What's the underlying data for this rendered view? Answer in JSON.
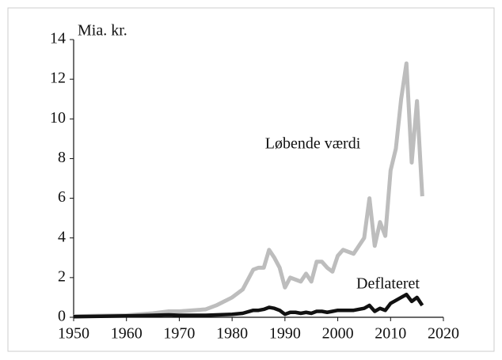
{
  "chart_data": {
    "type": "line",
    "ylabel": "Mia. kr.",
    "x": [
      1950,
      1955,
      1960,
      1965,
      1968,
      1970,
      1975,
      1977,
      1980,
      1982,
      1984,
      1985,
      1986,
      1987,
      1988,
      1989,
      1990,
      1991,
      1992,
      1993,
      1994,
      1995,
      1996,
      1997,
      1998,
      1999,
      2000,
      2001,
      2002,
      2003,
      2004,
      2005,
      2006,
      2007,
      2008,
      2009,
      2010,
      2011,
      2012,
      2013,
      2014,
      2015,
      2016
    ],
    "series": [
      {
        "name": "Løbende værdi",
        "color": "#bdbdbd",
        "values": [
          0.05,
          0.08,
          0.1,
          0.2,
          0.3,
          0.3,
          0.4,
          0.6,
          1.0,
          1.4,
          2.4,
          2.5,
          2.5,
          3.4,
          3.0,
          2.5,
          1.5,
          2.0,
          1.9,
          1.8,
          2.2,
          1.8,
          2.8,
          2.8,
          2.5,
          2.3,
          3.1,
          3.4,
          3.3,
          3.2,
          3.6,
          4.0,
          6.0,
          3.6,
          4.8,
          4.1,
          7.4,
          8.5,
          11.0,
          12.8,
          7.8,
          10.9,
          6.1
        ]
      },
      {
        "name": "Deflateret",
        "color": "#111111",
        "values": [
          0.03,
          0.05,
          0.07,
          0.1,
          0.12,
          0.1,
          0.1,
          0.12,
          0.15,
          0.2,
          0.35,
          0.35,
          0.4,
          0.5,
          0.45,
          0.35,
          0.15,
          0.25,
          0.25,
          0.2,
          0.25,
          0.2,
          0.3,
          0.3,
          0.25,
          0.3,
          0.35,
          0.35,
          0.35,
          0.35,
          0.4,
          0.45,
          0.6,
          0.3,
          0.45,
          0.35,
          0.7,
          0.85,
          1.0,
          1.15,
          0.8,
          1.0,
          0.6
        ]
      }
    ],
    "xlim": [
      1950,
      2020
    ],
    "xticks": [
      1950,
      1960,
      1970,
      1980,
      1990,
      2000,
      2010,
      2020
    ],
    "ylim": [
      0,
      14
    ],
    "yticks": [
      0,
      2,
      4,
      6,
      8,
      10,
      12,
      14
    ],
    "grid": false
  }
}
